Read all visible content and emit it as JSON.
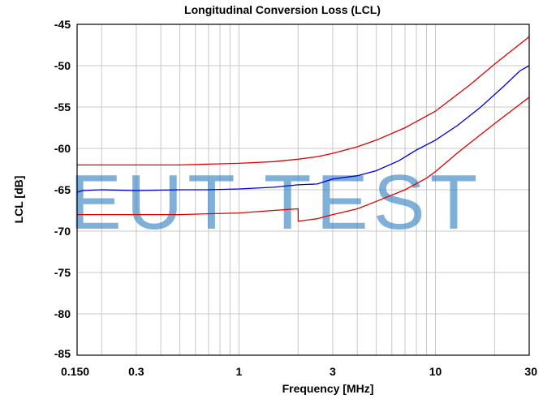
{
  "watermark": "EUT TEST",
  "chart_data": {
    "type": "line",
    "title": "Longitudinal Conversion Loss (LCL)",
    "xlabel": "Frequency [MHz]",
    "ylabel": "LCL [dB]",
    "xscale": "log",
    "xlim": [
      0.15,
      30
    ],
    "ylim": [
      -85,
      -45
    ],
    "grid": true,
    "x_tick_labels": [
      {
        "value": 0.15,
        "label": "0.150"
      },
      {
        "value": 0.3,
        "label": "0.3"
      },
      {
        "value": 1,
        "label": "1"
      },
      {
        "value": 3,
        "label": "3"
      },
      {
        "value": 10,
        "label": "10"
      },
      {
        "value": 30,
        "label": "30"
      }
    ],
    "x_gridlines": [
      0.2,
      0.3,
      0.4,
      0.5,
      0.6,
      0.7,
      0.8,
      0.9,
      1,
      2,
      3,
      4,
      5,
      6,
      7,
      8,
      9,
      10,
      20
    ],
    "y_ticks": [
      -45,
      -50,
      -55,
      -60,
      -65,
      -70,
      -75,
      -80,
      -85
    ],
    "series": [
      {
        "color": "#e00000",
        "points": [
          [
            0.15,
            -62
          ],
          [
            0.3,
            -62
          ],
          [
            0.5,
            -62
          ],
          [
            0.7,
            -61.9
          ],
          [
            1,
            -61.8
          ],
          [
            1.5,
            -61.6
          ],
          [
            2,
            -61.3
          ],
          [
            2.5,
            -61
          ],
          [
            3,
            -60.6
          ],
          [
            4,
            -59.8
          ],
          [
            5,
            -59
          ],
          [
            7,
            -57.5
          ],
          [
            10,
            -55.5
          ],
          [
            15,
            -52.3
          ],
          [
            20,
            -49.8
          ],
          [
            30,
            -46.5
          ]
        ]
      },
      {
        "color": "#0000d0",
        "points": [
          [
            0.15,
            -65.3
          ],
          [
            0.16,
            -65.1
          ],
          [
            0.2,
            -65
          ],
          [
            0.3,
            -65.1
          ],
          [
            0.5,
            -65
          ],
          [
            0.7,
            -65
          ],
          [
            1,
            -64.9
          ],
          [
            1.5,
            -64.7
          ],
          [
            2,
            -64.4
          ],
          [
            2.5,
            -64.3
          ],
          [
            3,
            -63.7
          ],
          [
            4,
            -63.3
          ],
          [
            5,
            -62.7
          ],
          [
            6.5,
            -61.5
          ],
          [
            8,
            -60.2
          ],
          [
            10,
            -59
          ],
          [
            13,
            -57.2
          ],
          [
            17,
            -55
          ],
          [
            22,
            -52.6
          ],
          [
            27,
            -50.6
          ],
          [
            30,
            -50
          ]
        ]
      },
      {
        "color": "#e00000",
        "points": [
          [
            0.15,
            -68
          ],
          [
            0.3,
            -68
          ],
          [
            0.5,
            -68
          ],
          [
            0.7,
            -67.9
          ],
          [
            1,
            -67.8
          ],
          [
            1.5,
            -67.5
          ],
          [
            2,
            -67.3
          ],
          [
            2.001,
            -68.8
          ],
          [
            2.5,
            -68.5
          ],
          [
            3,
            -68
          ],
          [
            4,
            -67.3
          ],
          [
            5,
            -66.4
          ],
          [
            7,
            -65
          ],
          [
            9,
            -63.6
          ],
          [
            10,
            -62.8
          ],
          [
            13,
            -60.5
          ],
          [
            20,
            -57
          ],
          [
            30,
            -53.8
          ]
        ]
      }
    ]
  }
}
